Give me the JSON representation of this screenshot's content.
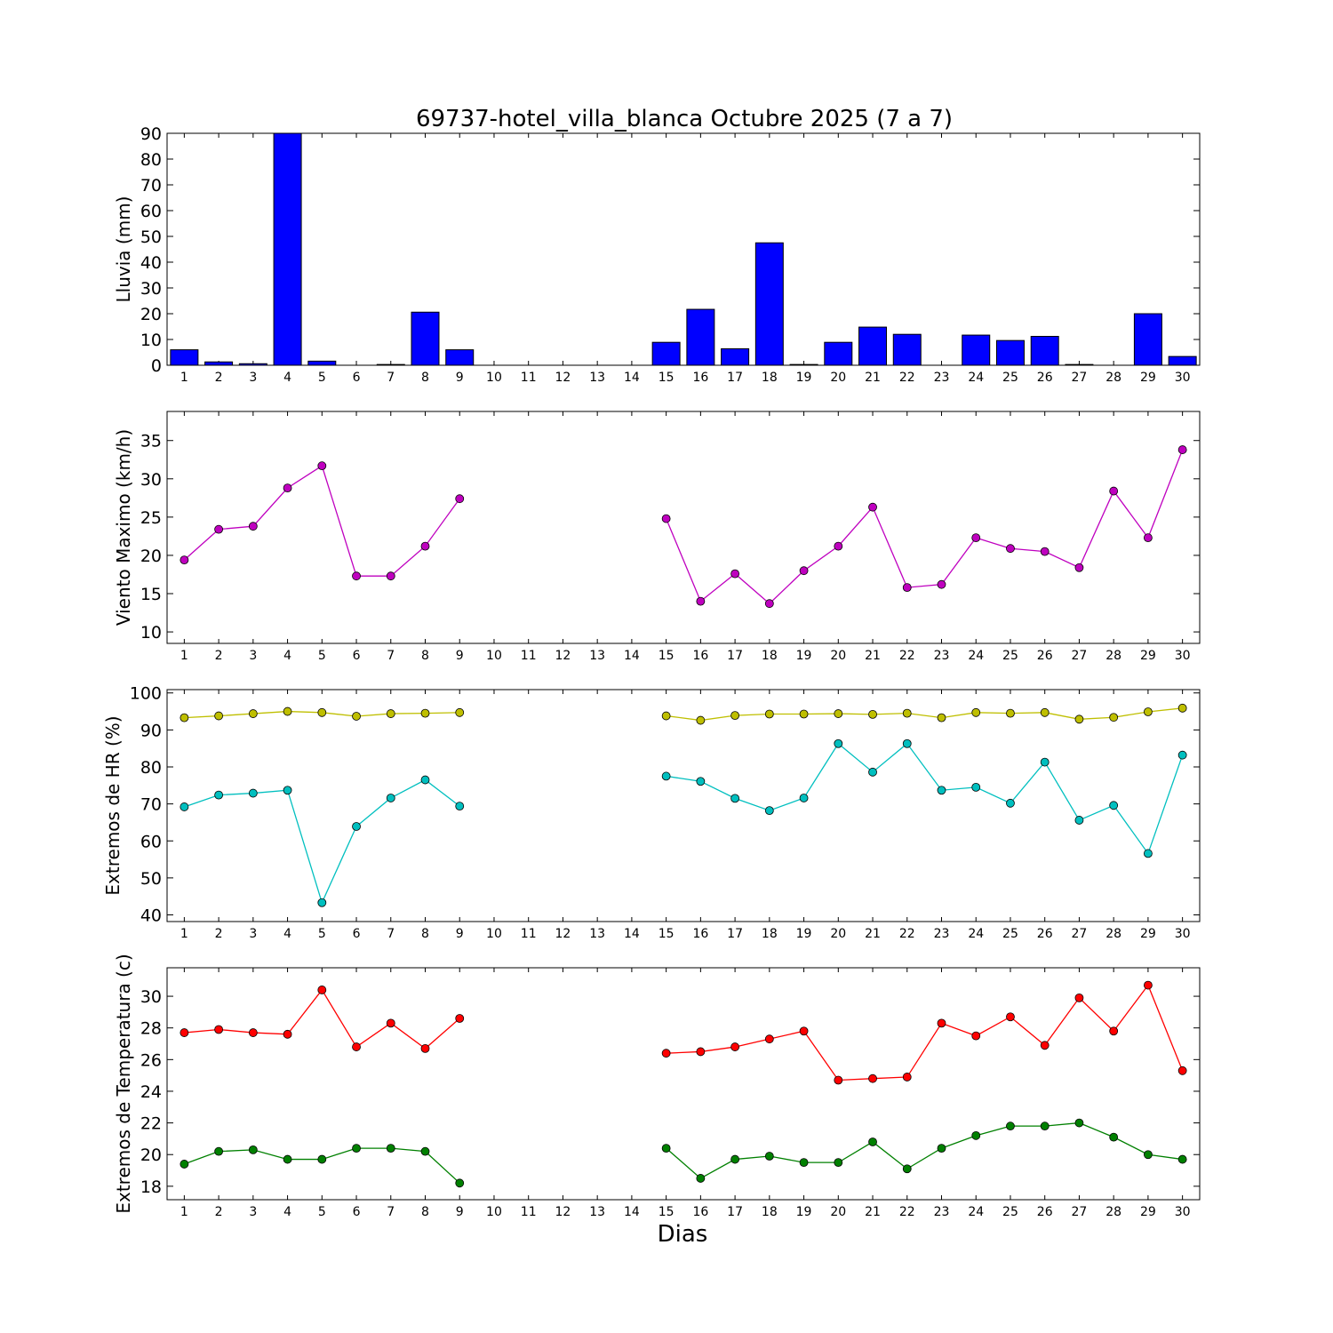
{
  "chart_data": {
    "title": "69737-hotel_villa_blanca Octubre 2025  (7 a 7)",
    "xlabel": "Dias",
    "days": [
      1,
      2,
      3,
      4,
      5,
      6,
      7,
      8,
      9,
      10,
      11,
      12,
      13,
      14,
      15,
      16,
      17,
      18,
      19,
      20,
      21,
      22,
      23,
      24,
      25,
      26,
      27,
      28,
      29,
      30
    ],
    "panels": [
      {
        "type": "bar",
        "ylabel": "Lluvia (mm)",
        "ylim": [
          0,
          90
        ],
        "yticks": [
          0,
          10,
          20,
          30,
          40,
          50,
          60,
          70,
          80,
          90
        ],
        "series": [
          {
            "color": "#0000ff",
            "values": [
              6.0,
              1.3,
              0.6,
              90,
              1.6,
              0,
              0.3,
              20.6,
              6.0,
              0,
              0,
              0,
              0,
              0,
              8.9,
              21.7,
              6.4,
              47.5,
              0.3,
              8.9,
              14.8,
              12.0,
              0,
              11.7,
              9.6,
              11.2,
              0.3,
              0,
              20.0,
              3.4
            ]
          }
        ]
      },
      {
        "type": "line",
        "ylabel": "Viento Maximo (km/h)",
        "ylim": [
          8.5,
          38.8
        ],
        "yticks": [
          10,
          15,
          20,
          25,
          30,
          35
        ],
        "series": [
          {
            "color": "#bf00bf",
            "values": [
              19.4,
              23.4,
              23.8,
              28.8,
              31.7,
              17.3,
              17.3,
              21.2,
              27.4,
              null,
              null,
              null,
              null,
              null,
              24.8,
              14.0,
              17.6,
              13.7,
              18.0,
              21.2,
              26.3,
              15.8,
              16.2,
              22.3,
              20.9,
              20.5,
              18.4,
              28.4,
              22.3,
              33.8
            ]
          }
        ]
      },
      {
        "type": "line",
        "ylabel": "Extremos de HR (%)",
        "ylim": [
          38.2,
          100.9
        ],
        "yticks": [
          40,
          50,
          60,
          70,
          80,
          90,
          100
        ],
        "series": [
          {
            "color": "#bfbf00",
            "values": [
              93.3,
              93.8,
              94.4,
              95.0,
              94.7,
              93.7,
              94.4,
              94.5,
              94.7,
              null,
              null,
              null,
              null,
              null,
              93.8,
              92.6,
              93.9,
              94.3,
              94.3,
              94.4,
              94.2,
              94.5,
              93.3,
              94.7,
              94.5,
              94.7,
              92.9,
              93.4,
              94.9,
              95.9
            ]
          },
          {
            "color": "#00bfbf",
            "values": [
              69.2,
              72.4,
              72.9,
              73.7,
              43.3,
              63.9,
              71.6,
              76.5,
              69.4,
              null,
              null,
              null,
              null,
              null,
              77.5,
              76.1,
              71.5,
              68.2,
              71.6,
              86.3,
              78.6,
              86.3,
              73.7,
              74.5,
              70.2,
              81.3,
              65.6,
              69.6,
              56.6,
              83.2
            ]
          }
        ]
      },
      {
        "type": "line",
        "ylabel": "Extremos de Temperatura (c)",
        "ylim": [
          17.15,
          31.8
        ],
        "yticks": [
          18,
          20,
          22,
          24,
          26,
          28,
          30
        ],
        "series": [
          {
            "color": "#ff0000",
            "values": [
              27.7,
              27.9,
              27.7,
              27.6,
              30.4,
              26.8,
              28.3,
              26.7,
              28.6,
              null,
              null,
              null,
              null,
              null,
              26.4,
              26.5,
              26.8,
              27.3,
              27.8,
              24.7,
              24.8,
              24.9,
              28.3,
              27.5,
              28.7,
              26.9,
              29.9,
              27.8,
              30.7,
              25.3
            ]
          },
          {
            "color": "#008000",
            "values": [
              19.4,
              20.2,
              20.3,
              19.7,
              19.7,
              20.4,
              20.4,
              20.2,
              18.2,
              null,
              null,
              null,
              null,
              null,
              20.4,
              18.5,
              19.7,
              19.9,
              19.5,
              19.5,
              20.8,
              19.1,
              20.4,
              21.2,
              21.8,
              21.8,
              22.0,
              21.1,
              20.0,
              19.7
            ]
          }
        ]
      }
    ]
  }
}
